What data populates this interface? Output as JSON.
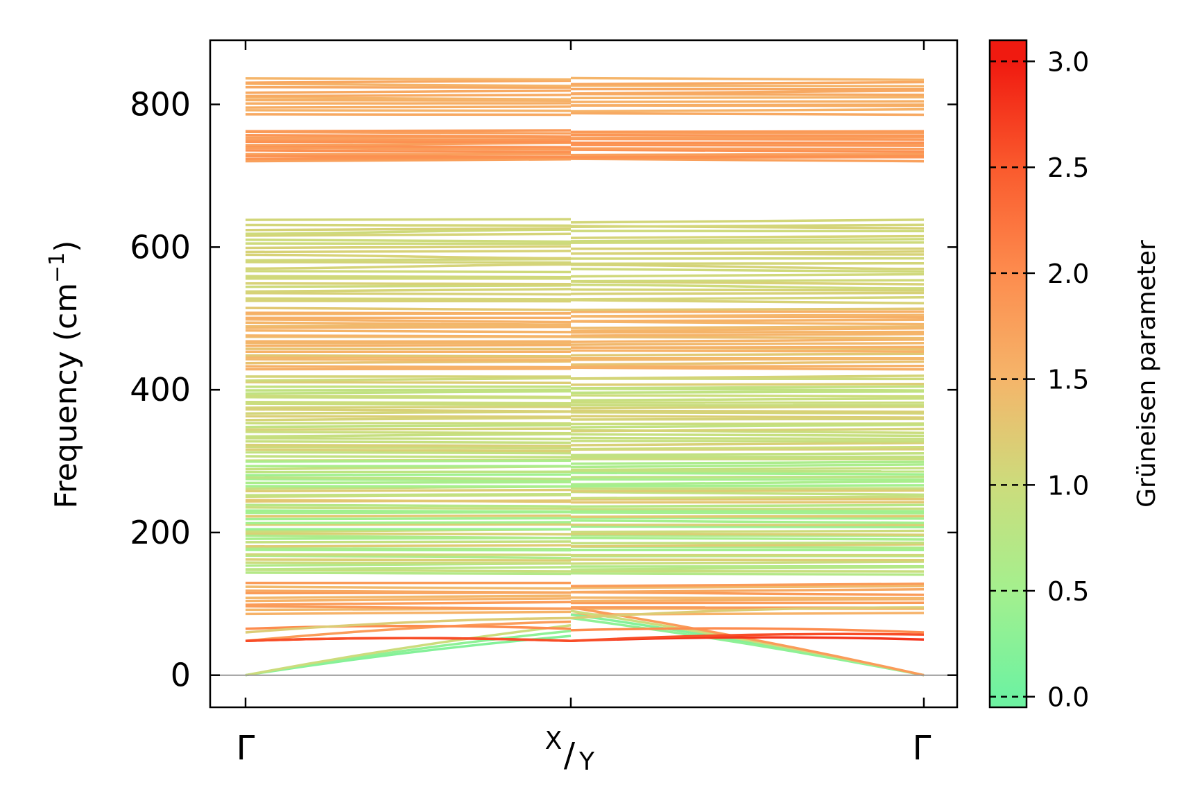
{
  "chart_data": {
    "type": "line",
    "ylabel_main": "Frequency (cm",
    "ylabel_exp": "−1",
    "ylabel_close": ")",
    "ylim": [
      -45,
      890
    ],
    "y_ticks": [
      0,
      200,
      400,
      600,
      800
    ],
    "y_tick_labels": [
      "0",
      "200",
      "400",
      "600",
      "800"
    ],
    "x_ticks": [
      0,
      1,
      2
    ],
    "x_tick_labels": [
      "Γ",
      "X",
      "Y",
      "Γ"
    ],
    "x_tick_label_center": {
      "sup": "X",
      "sub": "Y"
    },
    "grid": false,
    "colorbar": {
      "label": "Grüneisen parameter",
      "range": [
        -0.05,
        3.1
      ],
      "ticks": [
        0.0,
        0.5,
        1.0,
        1.5,
        2.0,
        2.5,
        3.0
      ],
      "tick_labels": [
        "0.0",
        "0.5",
        "1.0",
        "1.5",
        "2.0",
        "2.5",
        "3.0"
      ],
      "colormap_stops": [
        {
          "value": 0.0,
          "color": "#6ef2a1"
        },
        {
          "value": 0.5,
          "color": "#a4f08e"
        },
        {
          "value": 1.0,
          "color": "#ccdc7c"
        },
        {
          "value": 1.5,
          "color": "#f5b56a"
        },
        {
          "value": 2.0,
          "color": "#fd8c4e"
        },
        {
          "value": 2.5,
          "color": "#fa5a2d"
        },
        {
          "value": 3.0,
          "color": "#f01a10"
        }
      ]
    },
    "band_groups": [
      {
        "name": "",
        "ymin": 720,
        "ymax": 765,
        "count": 14,
        "gamma": [
          1.75,
          1.95
        ]
      },
      {
        "name": "",
        "ymin": 785,
        "ymax": 838,
        "count": 12,
        "gamma": [
          1.5,
          1.7
        ]
      },
      {
        "name": "",
        "ymin": 520,
        "ymax": 640,
        "count": 22,
        "gamma": [
          1.0,
          1.15
        ]
      },
      {
        "name": "",
        "ymin": 428,
        "ymax": 515,
        "count": 22,
        "gamma": [
          1.25,
          1.6
        ]
      },
      {
        "name": "",
        "ymin": 300,
        "ymax": 420,
        "count": 28,
        "gamma": [
          0.85,
          1.2
        ]
      },
      {
        "name": "",
        "ymin": 140,
        "ymax": 300,
        "count": 40,
        "gamma": [
          0.4,
          1.3
        ]
      },
      {
        "name": "",
        "ymin": 85,
        "ymax": 130,
        "count": 10,
        "gamma": [
          1.4,
          1.9
        ]
      }
    ],
    "special_bands": [
      {
        "gamma_pt": 0.2,
        "seg1": [
          0,
          55
        ],
        "seg2": [
          85,
          0
        ]
      },
      {
        "gamma_pt": 0.3,
        "seg1": [
          0,
          62
        ],
        "seg2": [
          80,
          0
        ]
      },
      {
        "gamma_pt": 1.0,
        "seg1": [
          0,
          70
        ],
        "seg2": [
          90,
          0
        ]
      },
      {
        "gamma_pt": 1.8,
        "seg1": [
          48,
          75
        ],
        "seg2": [
          95,
          0
        ]
      },
      {
        "gamma_pt": 2.8,
        "seg1": [
          48,
          48
        ],
        "seg2": [
          48,
          50
        ]
      },
      {
        "gamma_pt": 2.6,
        "seg1": [
          48,
          48
        ],
        "seg2": [
          48,
          57
        ]
      },
      {
        "gamma_pt": 2.0,
        "seg1": [
          65,
          65
        ],
        "seg2": [
          63,
          60
        ]
      },
      {
        "gamma_pt": 1.2,
        "seg1": [
          60,
          80
        ],
        "seg2": [
          80,
          95
        ]
      }
    ]
  }
}
